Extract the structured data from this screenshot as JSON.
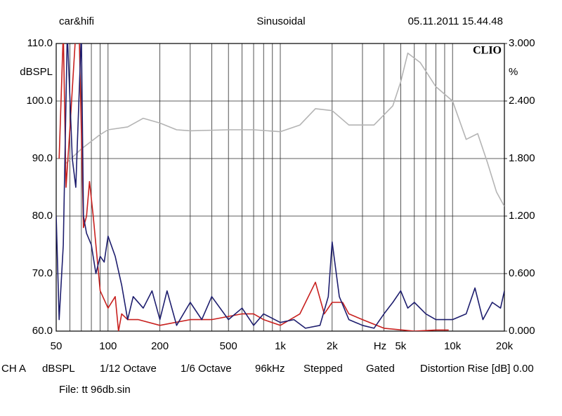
{
  "header": {
    "left": "car&hifi",
    "center": "Sinusoidal",
    "right": "05.11.2011 15.44.48"
  },
  "chart_data": {
    "type": "line",
    "brand": "CLIO",
    "y_label": "dBSPL",
    "y2_label": "%",
    "x_unit": "Hz",
    "log_x": true,
    "grid": true,
    "xlim": [
      50,
      20000
    ],
    "ylim": [
      60,
      110
    ],
    "y2lim": [
      0,
      3
    ],
    "xticks": [
      50,
      100,
      200,
      500,
      {
        "value": 1000,
        "label": "1k"
      },
      {
        "value": 2000,
        "label": "2k"
      },
      {
        "value": 5000,
        "label": "5k"
      },
      {
        "value": 10000,
        "label": "10k"
      },
      {
        "value": 20000,
        "label": "20k"
      }
    ],
    "x_minor_ticks": [
      60,
      70,
      80,
      90,
      300,
      400,
      600,
      700,
      800,
      900,
      3000,
      4000,
      6000,
      7000,
      8000,
      9000
    ],
    "yticks": [
      {
        "value": 60,
        "label": "60.0"
      },
      {
        "value": 70,
        "label": "70.0"
      },
      {
        "value": 80,
        "label": "80.0"
      },
      {
        "value": 90,
        "label": "90.0"
      },
      {
        "value": 100,
        "label": "100.0"
      },
      {
        "value": 110,
        "label": "110.0"
      }
    ],
    "y2ticks": [
      {
        "value": 0,
        "label": "0.000"
      },
      {
        "value": 0.6,
        "label": "0.600"
      },
      {
        "value": 1.2,
        "label": "1.200"
      },
      {
        "value": 1.8,
        "label": "1.800"
      },
      {
        "value": 2.4,
        "label": "2.400"
      },
      {
        "value": 3,
        "label": "3.000"
      }
    ],
    "series": [
      {
        "color": "#b4b4b4",
        "axis": "y2",
        "x": [
          57,
          70,
          90,
          100,
          130,
          160,
          200,
          250,
          300,
          500,
          700,
          1000,
          1300,
          1600,
          2000,
          2500,
          3500,
          4500,
          5000,
          5500,
          6500,
          8000,
          10000,
          12000,
          14000,
          16000,
          18000,
          20000
        ],
        "values": [
          1.75,
          1.9,
          2.05,
          2.1,
          2.13,
          2.22,
          2.17,
          2.1,
          2.09,
          2.1,
          2.1,
          2.08,
          2.15,
          2.32,
          2.3,
          2.15,
          2.15,
          2.35,
          2.6,
          2.9,
          2.8,
          2.55,
          2.4,
          2.0,
          2.06,
          1.75,
          1.45,
          1.3
        ]
      },
      {
        "color": "#c8201e",
        "x": [
          52,
          55,
          57,
          60,
          65,
          68,
          72,
          75,
          78,
          82,
          85,
          90,
          100,
          110,
          115,
          120,
          130,
          150,
          200,
          300,
          400,
          600,
          700,
          800,
          1000,
          1300,
          1600,
          1800,
          2000,
          2300,
          2500,
          3000,
          4000,
          6000,
          8000,
          9500
        ],
        "values": [
          90,
          112,
          85,
          95,
          112,
          112,
          78,
          80,
          86,
          80,
          75,
          67,
          64,
          66,
          60,
          63,
          62,
          62,
          61,
          62,
          62,
          63,
          63,
          62,
          61,
          63,
          68.5,
          63,
          65,
          65,
          63,
          62,
          60.5,
          60,
          60.2,
          60.2
        ]
      },
      {
        "color": "#1e1e6e",
        "x": [
          50,
          52,
          55,
          58,
          62,
          65,
          70,
          72,
          75,
          80,
          85,
          90,
          95,
          100,
          110,
          120,
          130,
          140,
          160,
          180,
          200,
          220,
          250,
          300,
          350,
          400,
          500,
          600,
          700,
          800,
          1000,
          1200,
          1400,
          1700,
          1900,
          2000,
          2200,
          2500,
          3000,
          3500,
          4000,
          4500,
          5000,
          5500,
          6000,
          7000,
          8000,
          10000,
          12000,
          13500,
          15000,
          17000,
          19000,
          20000
        ],
        "values": [
          80,
          62,
          75,
          112,
          90,
          85,
          112,
          80,
          77,
          75,
          70,
          73,
          72,
          76.5,
          73,
          68,
          62,
          66,
          64,
          67,
          62,
          67,
          61,
          65,
          62,
          66,
          62,
          64,
          61,
          63,
          61.5,
          62,
          60.5,
          61,
          66,
          75.5,
          66,
          62,
          61,
          60.5,
          63,
          65,
          67,
          64,
          65,
          63,
          62,
          62,
          63,
          67.5,
          62,
          65,
          64,
          67
        ]
      }
    ]
  },
  "footer": {
    "channel": "CH A",
    "unit": "dBSPL",
    "resolution": "1/12 Octave",
    "smoothing": "1/6 Octave",
    "rate": "96kHz",
    "mode": "Stepped",
    "gating": "Gated",
    "distortion": "Distortion Rise [dB] 0.00",
    "file": "File: tt 96db.sin"
  }
}
